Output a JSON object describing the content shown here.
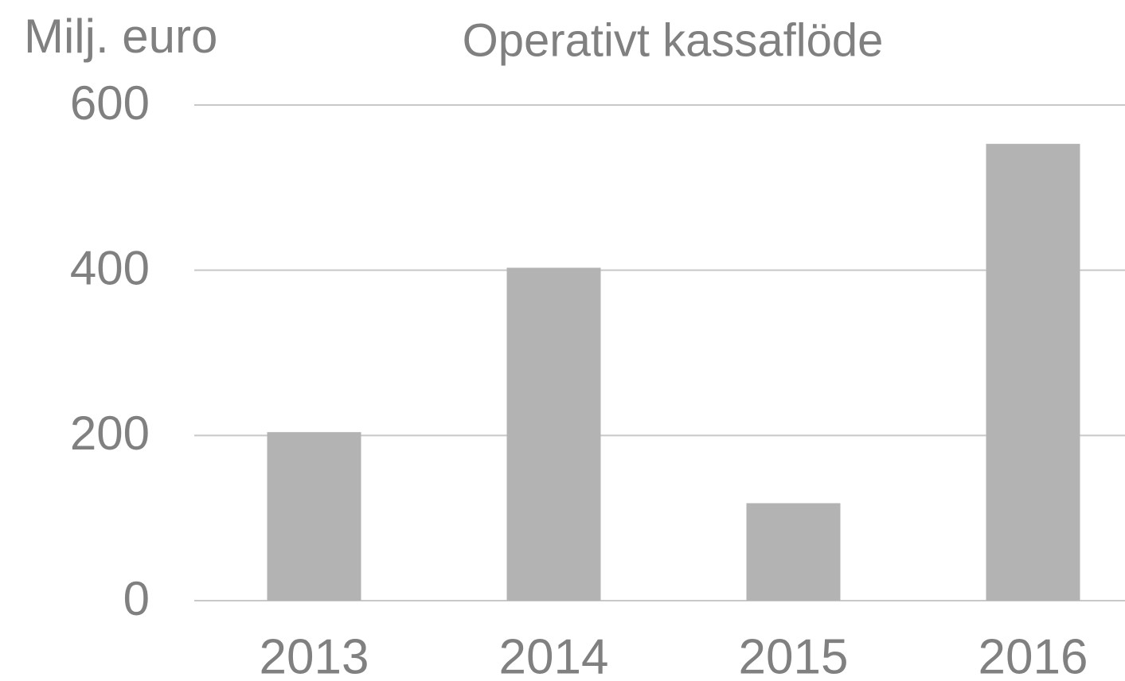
{
  "chart_data": {
    "type": "bar",
    "title": "Operativt kassaflöde",
    "y_label": "Milj. euro",
    "categories": [
      "2013",
      "2014",
      "2015",
      "2016"
    ],
    "values": [
      204,
      403,
      118,
      553
    ],
    "color": "#b3b3b3",
    "ylim": [
      0,
      600
    ],
    "yticks": [
      0,
      200,
      400,
      600
    ],
    "grid": true
  }
}
